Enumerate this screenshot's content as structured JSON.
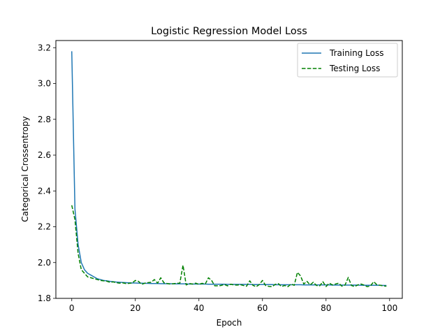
{
  "chart_data": {
    "type": "line",
    "title": "Logistic Regression Model Loss",
    "xlabel": "Epoch",
    "ylabel": "Categorical Crossentropy",
    "xlim": [
      -5,
      104
    ],
    "ylim": [
      1.8,
      3.24
    ],
    "xticks": [
      0,
      20,
      40,
      60,
      80,
      100
    ],
    "yticks": [
      1.8,
      2.0,
      2.2,
      2.4,
      2.6,
      2.8,
      3.0,
      3.2
    ],
    "grid": false,
    "legend_position": "top-right",
    "series": [
      {
        "name": "Training Loss",
        "color": "#1f77b4",
        "style": "solid",
        "x": [
          0,
          1,
          2,
          3,
          4,
          5,
          6,
          7,
          8,
          9,
          10,
          11,
          12,
          13,
          14,
          15,
          16,
          17,
          18,
          19,
          20,
          21,
          22,
          23,
          24,
          25,
          26,
          27,
          28,
          29,
          30,
          31,
          32,
          33,
          34,
          35,
          36,
          37,
          38,
          39,
          40,
          41,
          42,
          43,
          44,
          45,
          46,
          47,
          48,
          49,
          50,
          51,
          52,
          53,
          54,
          55,
          56,
          57,
          58,
          59,
          60,
          61,
          62,
          63,
          64,
          65,
          66,
          67,
          68,
          69,
          70,
          71,
          72,
          73,
          74,
          75,
          76,
          77,
          78,
          79,
          80,
          81,
          82,
          83,
          84,
          85,
          86,
          87,
          88,
          89,
          90,
          91,
          92,
          93,
          94,
          95,
          96,
          97,
          98,
          99
        ],
        "values": [
          3.18,
          2.3,
          2.1,
          2.0,
          1.96,
          1.94,
          1.93,
          1.92,
          1.91,
          1.905,
          1.9,
          1.898,
          1.895,
          1.893,
          1.891,
          1.89,
          1.889,
          1.888,
          1.887,
          1.886,
          1.886,
          1.885,
          1.885,
          1.884,
          1.884,
          1.883,
          1.883,
          1.883,
          1.882,
          1.882,
          1.882,
          1.882,
          1.881,
          1.881,
          1.881,
          1.881,
          1.881,
          1.88,
          1.88,
          1.88,
          1.88,
          1.88,
          1.88,
          1.879,
          1.879,
          1.879,
          1.879,
          1.879,
          1.879,
          1.878,
          1.878,
          1.878,
          1.878,
          1.878,
          1.878,
          1.878,
          1.878,
          1.877,
          1.877,
          1.877,
          1.877,
          1.877,
          1.877,
          1.877,
          1.876,
          1.876,
          1.876,
          1.876,
          1.876,
          1.876,
          1.876,
          1.876,
          1.876,
          1.875,
          1.875,
          1.875,
          1.875,
          1.875,
          1.875,
          1.875,
          1.875,
          1.875,
          1.874,
          1.874,
          1.874,
          1.874,
          1.874,
          1.874,
          1.874,
          1.874,
          1.874,
          1.873,
          1.873,
          1.873,
          1.873,
          1.873,
          1.873,
          1.873,
          1.872,
          1.872
        ]
      },
      {
        "name": "Testing Loss",
        "color": "#008000",
        "style": "dashed",
        "x": [
          0,
          1,
          2,
          3,
          4,
          5,
          6,
          7,
          8,
          9,
          10,
          11,
          12,
          13,
          14,
          15,
          16,
          17,
          18,
          19,
          20,
          21,
          22,
          23,
          24,
          25,
          26,
          27,
          28,
          29,
          30,
          31,
          32,
          33,
          34,
          35,
          36,
          37,
          38,
          39,
          40,
          41,
          42,
          43,
          44,
          45,
          46,
          47,
          48,
          49,
          50,
          51,
          52,
          53,
          54,
          55,
          56,
          57,
          58,
          59,
          60,
          61,
          62,
          63,
          64,
          65,
          66,
          67,
          68,
          69,
          70,
          71,
          72,
          73,
          74,
          75,
          76,
          77,
          78,
          79,
          80,
          81,
          82,
          83,
          84,
          85,
          86,
          87,
          88,
          89,
          90,
          91,
          92,
          93,
          94,
          95,
          96,
          97,
          98,
          99
        ],
        "values": [
          2.32,
          2.24,
          2.05,
          1.96,
          1.94,
          1.92,
          1.915,
          1.91,
          1.905,
          1.9,
          1.898,
          1.896,
          1.89,
          1.892,
          1.888,
          1.885,
          1.887,
          1.883,
          1.884,
          1.886,
          1.9,
          1.895,
          1.878,
          1.885,
          1.888,
          1.89,
          1.905,
          1.885,
          1.915,
          1.887,
          1.883,
          1.88,
          1.882,
          1.884,
          1.885,
          1.985,
          1.875,
          1.883,
          1.88,
          1.885,
          1.878,
          1.884,
          1.88,
          1.915,
          1.9,
          1.87,
          1.87,
          1.872,
          1.878,
          1.87,
          1.879,
          1.875,
          1.874,
          1.877,
          1.872,
          1.868,
          1.898,
          1.873,
          1.865,
          1.877,
          1.9,
          1.872,
          1.867,
          1.865,
          1.878,
          1.882,
          1.866,
          1.872,
          1.865,
          1.88,
          1.873,
          1.945,
          1.925,
          1.88,
          1.895,
          1.875,
          1.89,
          1.872,
          1.87,
          1.893,
          1.866,
          1.885,
          1.875,
          1.88,
          1.885,
          1.868,
          1.875,
          1.917,
          1.872,
          1.866,
          1.875,
          1.88,
          1.874,
          1.865,
          1.87,
          1.893,
          1.876,
          1.873,
          1.87,
          1.868
        ]
      }
    ]
  }
}
